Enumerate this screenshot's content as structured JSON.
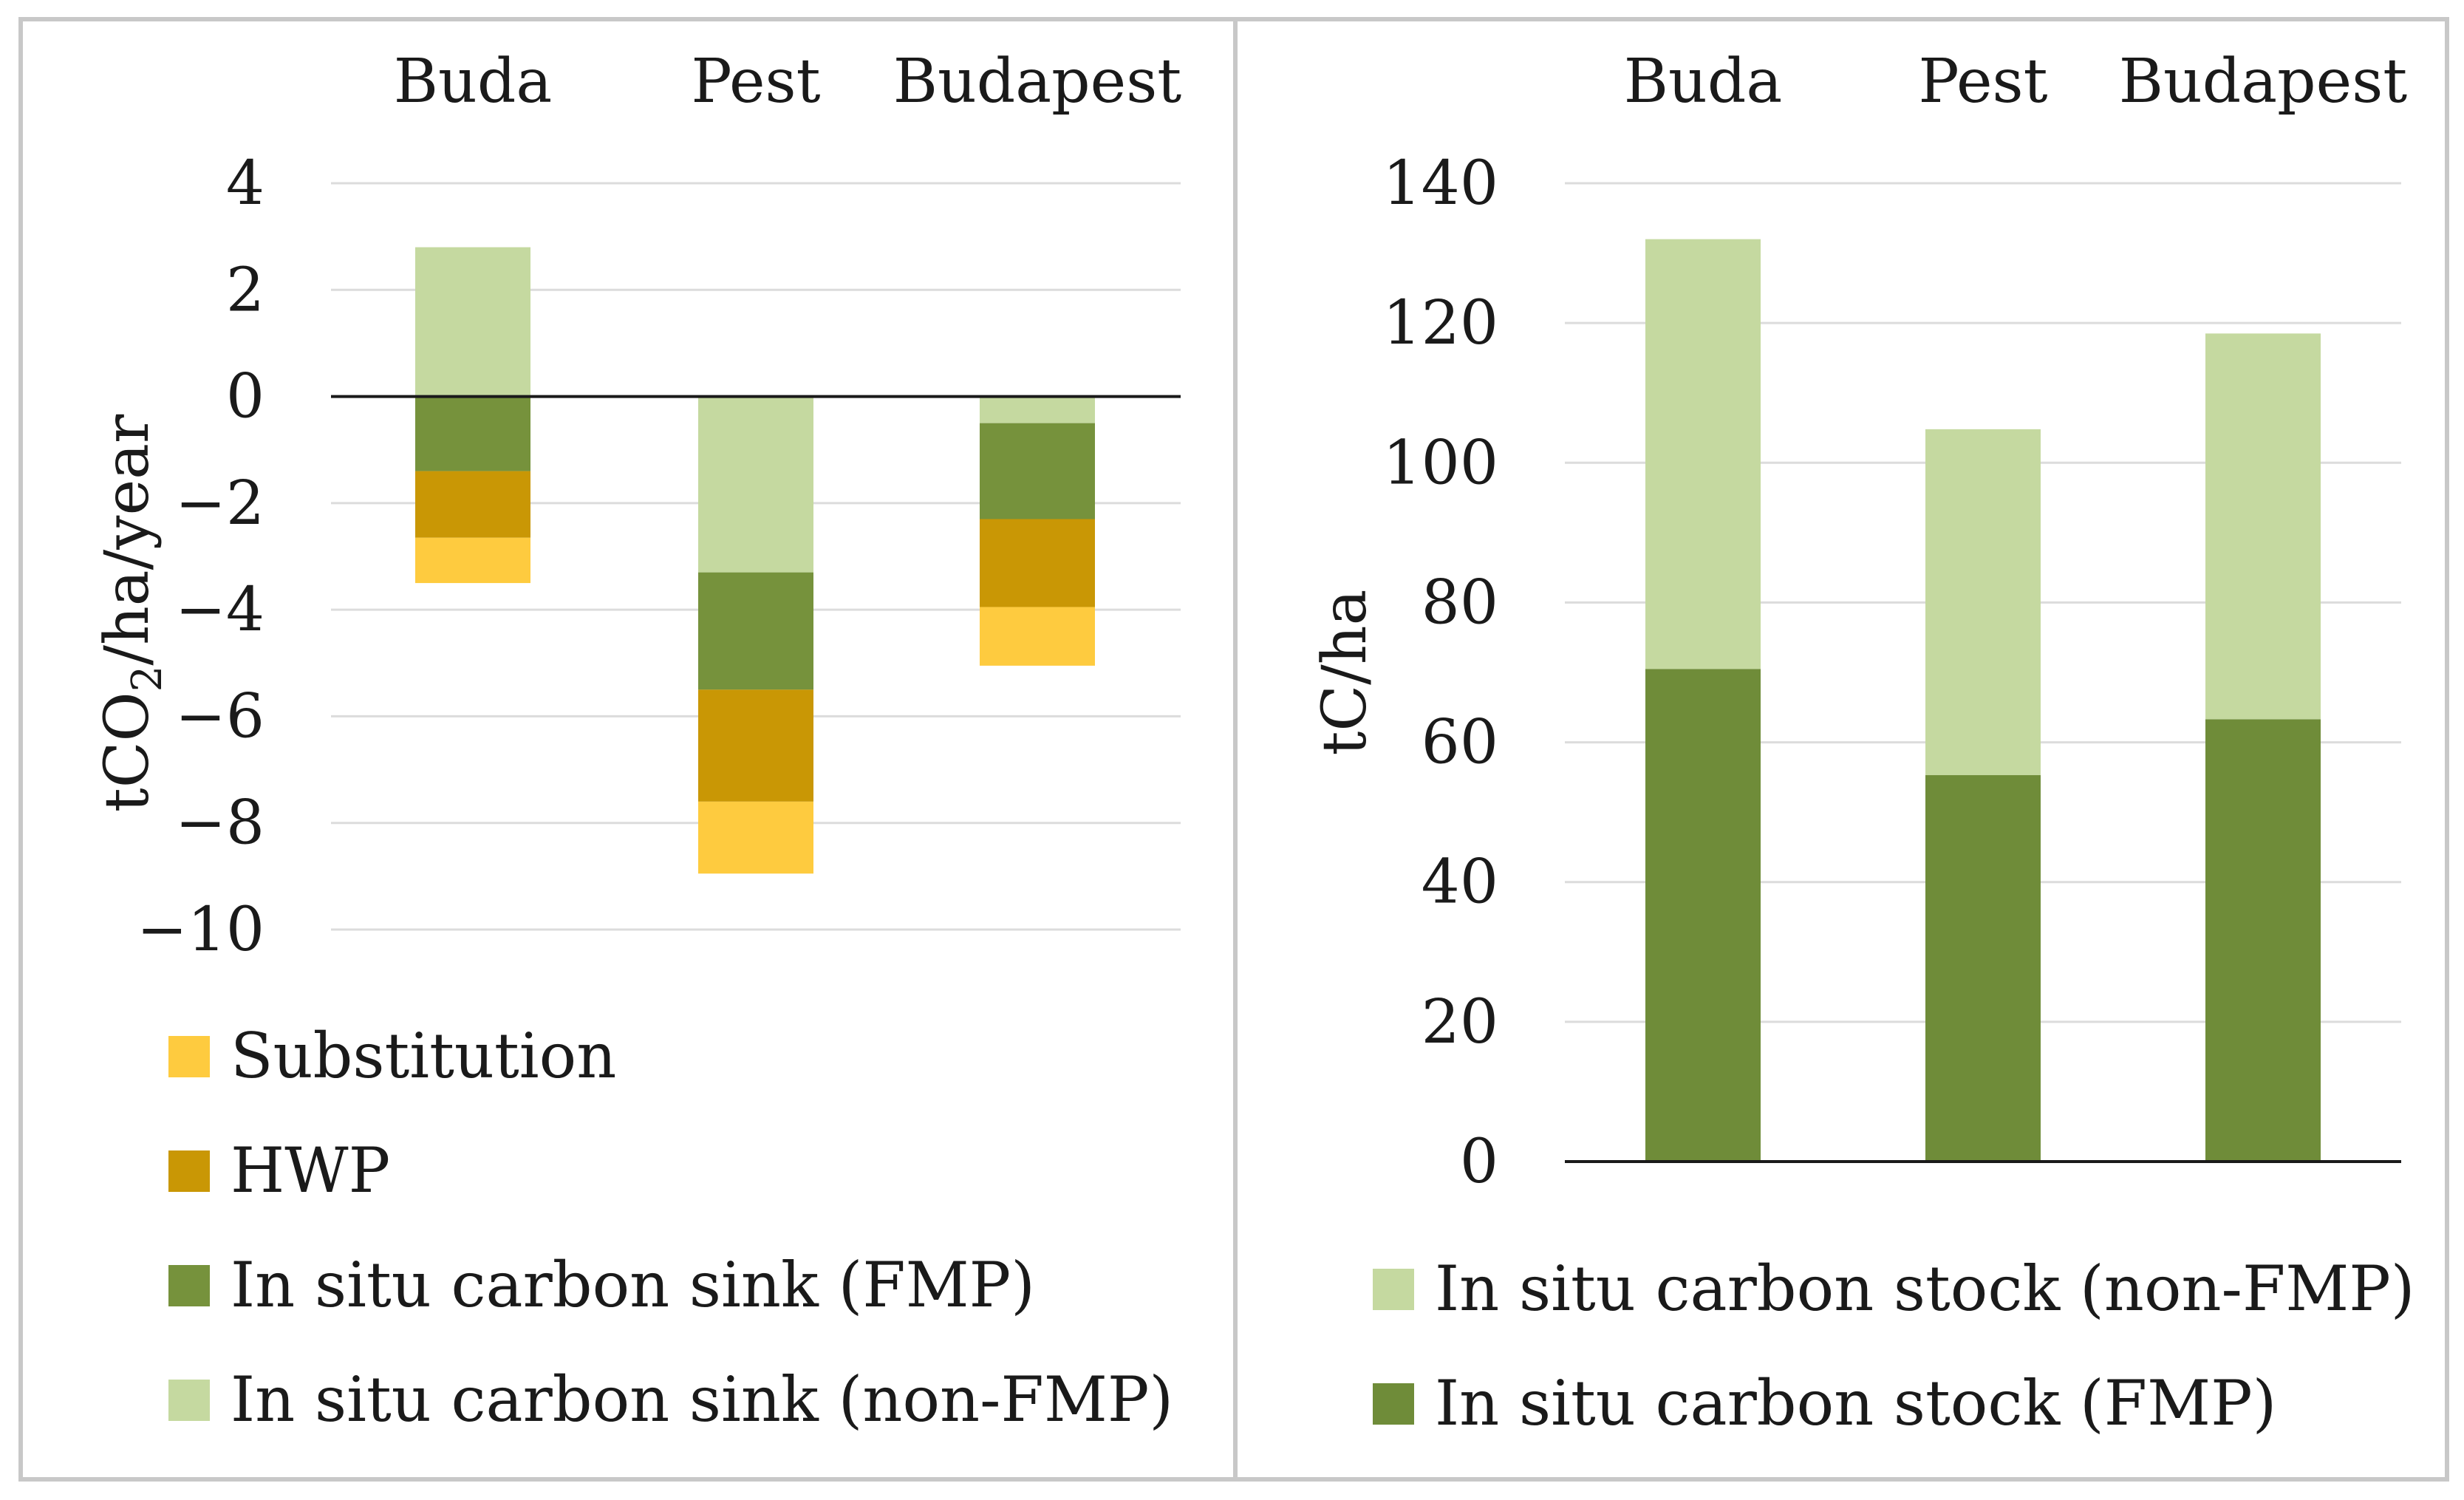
{
  "chart_data": [
    {
      "type": "bar",
      "stacked": true,
      "categories": [
        "Buda",
        "Pest",
        "Budapest"
      ],
      "ylabel": "tCO2/ha/year",
      "ylabel_parts": {
        "pre": "tCO",
        "sub": "2",
        "post": "/ha/year"
      },
      "ylim": [
        -10,
        4
      ],
      "yticks": [
        4,
        2,
        0,
        -2,
        -4,
        -6,
        -8,
        -10
      ],
      "ytick_labels": [
        "4",
        "2",
        "0",
        "−2",
        "−4",
        "−6",
        "−8",
        "−10"
      ],
      "grid": true,
      "legend_position": "bottom",
      "series": [
        {
          "name": "In situ carbon sink (non-FMP)",
          "color": "#c5d9a0",
          "values": [
            2.8,
            -3.3,
            -0.5
          ]
        },
        {
          "name": "In situ carbon sink (FMP)",
          "color": "#76923c",
          "values": [
            -1.4,
            -2.2,
            -1.8
          ]
        },
        {
          "name": "HWP",
          "color": "#c99705",
          "values": [
            -1.25,
            -2.1,
            -1.65
          ]
        },
        {
          "name": "Substitution",
          "color": "#fecb3f",
          "values": [
            -0.85,
            -1.35,
            -1.1
          ]
        }
      ],
      "legend_order": [
        "Substitution",
        "HWP",
        "In situ carbon sink (FMP)",
        "In situ carbon sink (non-FMP)"
      ]
    },
    {
      "type": "bar",
      "stacked": true,
      "categories": [
        "Buda",
        "Pest",
        "Budapest"
      ],
      "ylabel": "tC/ha",
      "ylim": [
        0,
        140
      ],
      "yticks": [
        140,
        120,
        100,
        80,
        60,
        40,
        20,
        0
      ],
      "ytick_labels": [
        "140",
        "120",
        "100",
        "80",
        "60",
        "40",
        "20",
        "0"
      ],
      "grid": true,
      "legend_position": "bottom",
      "series": [
        {
          "name": "In situ carbon stock (FMP)",
          "color": "#6f8c39",
          "values": [
            70.5,
            55.3,
            63.3
          ]
        },
        {
          "name": "In situ carbon stock (non-FMP)",
          "color": "#c5d9a0",
          "values": [
            61.5,
            49.5,
            55.2
          ]
        }
      ],
      "legend_order": [
        "In situ carbon stock (non-FMP)",
        "In situ carbon stock (FMP)"
      ]
    }
  ],
  "colors": {
    "border": "#c8c8c8",
    "grid": "#dcdcdc",
    "zero_line": "#1a1a1a"
  }
}
